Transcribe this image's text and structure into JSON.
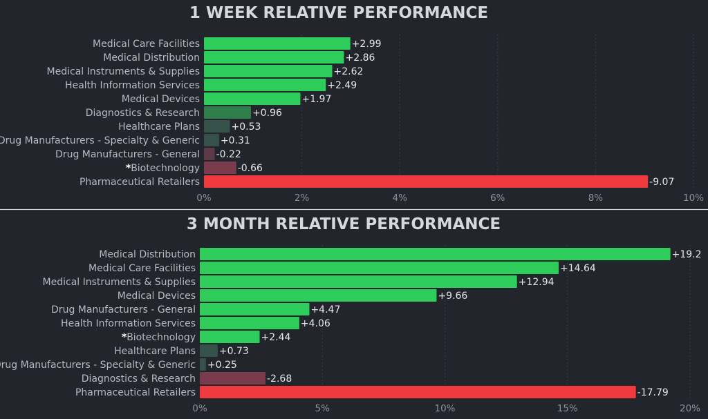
{
  "colors": {
    "background": "#22252c",
    "strong_positive": "#2ecc5a",
    "mid_positive": "#2e7d4b",
    "weak_positive": "#35514a",
    "weak_negative": "#5c3a48",
    "mid_negative": "#7a3b4c",
    "strong_negative": "#f03a3f",
    "divider": "#cfd1d6"
  },
  "chart_data": [
    {
      "type": "bar",
      "orientation": "horizontal",
      "title": "1 WEEK RELATIVE PERFORMANCE",
      "categories": [
        "Medical Care Facilities",
        "Medical Distribution",
        "Medical Instruments & Supplies",
        "Health Information Services",
        "Medical Devices",
        "Diagnostics & Research",
        "Healthcare Plans",
        "Drug Manufacturers - Specialty & Generic",
        "Drug Manufacturers - General",
        "Biotechnology",
        "Pharmaceutical Retailers"
      ],
      "highlighted": [
        "Biotechnology"
      ],
      "highlight_marker": "*",
      "values": [
        2.99,
        2.86,
        2.62,
        2.49,
        1.97,
        0.96,
        0.53,
        0.31,
        -0.22,
        -0.66,
        -9.07
      ],
      "value_labels": [
        "+2.99",
        "+2.86",
        "+2.62",
        "+2.49",
        "+1.97",
        "+0.96",
        "+0.53",
        "+0.31",
        "-0.22",
        "-0.66",
        "-9.07"
      ],
      "bar_length": "absolute value",
      "xlim": [
        0,
        10
      ],
      "xticks": [
        0,
        2,
        4,
        6,
        8,
        10
      ],
      "xtick_labels": [
        "0%",
        "2%",
        "4%",
        "6%",
        "8%",
        "10%"
      ],
      "grid": true
    },
    {
      "type": "bar",
      "orientation": "horizontal",
      "title": "3 MONTH RELATIVE PERFORMANCE",
      "categories": [
        "Medical Distribution",
        "Medical Care Facilities",
        "Medical Instruments & Supplies",
        "Medical Devices",
        "Drug Manufacturers - General",
        "Health Information Services",
        "Biotechnology",
        "Healthcare Plans",
        "Drug Manufacturers - Specialty & Generic",
        "Diagnostics & Research",
        "Pharmaceutical Retailers"
      ],
      "highlighted": [
        "Biotechnology"
      ],
      "highlight_marker": "*",
      "values": [
        19.2,
        14.64,
        12.94,
        9.66,
        4.47,
        4.06,
        2.44,
        0.73,
        0.25,
        -2.68,
        -17.79
      ],
      "value_labels": [
        "+19.2",
        "+14.64",
        "+12.94",
        "+9.66",
        "+4.47",
        "+4.06",
        "+2.44",
        "+0.73",
        "+0.25",
        "-2.68",
        "-17.79"
      ],
      "bar_length": "absolute value",
      "xlim": [
        0,
        20
      ],
      "xticks": [
        0,
        5,
        10,
        15,
        20
      ],
      "xtick_labels": [
        "0%",
        "5%",
        "10%",
        "15%",
        "20%"
      ],
      "grid": true
    }
  ]
}
